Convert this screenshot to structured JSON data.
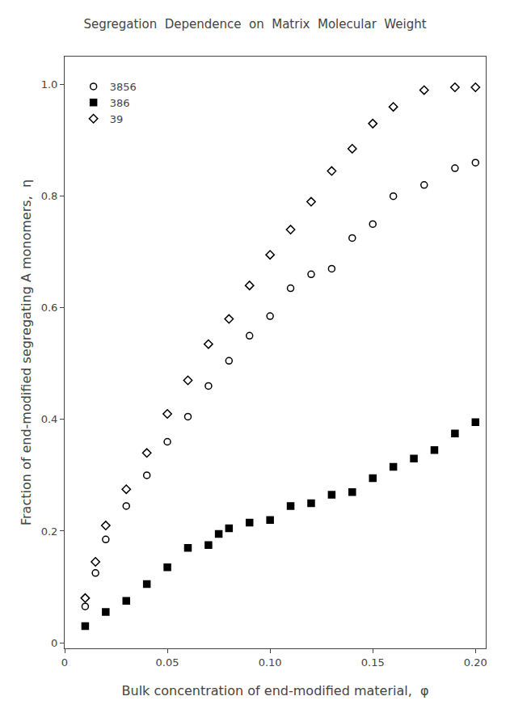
{
  "chart_data": {
    "type": "scatter",
    "title": "Segregation  Dependence  on  Matrix  Molecular  Weight",
    "xlabel": "Bulk concentration of end-modified material,  φ",
    "ylabel": "Fraction of end-modified segregating A monomers,  η",
    "xlim": [
      0,
      0.205
    ],
    "ylim": [
      -0.01,
      1.05
    ],
    "xticks": [
      0,
      0.05,
      {
        "value": 0.1,
        "label": "0.10"
      },
      0.15,
      {
        "value": 0.2,
        "label": "0.20"
      }
    ],
    "yticks": [
      0,
      0.2,
      0.4,
      0.6,
      0.8,
      {
        "value": 1,
        "label": "1.0"
      }
    ],
    "grid": false,
    "legend": "upper left",
    "series": [
      {
        "name": "3856",
        "color": "#000000",
        "marker": "circle-open",
        "x": [
          0.01,
          0.015,
          0.02,
          0.03,
          0.04,
          0.05,
          0.06,
          0.07,
          0.08,
          0.09,
          0.1,
          0.11,
          0.12,
          0.13,
          0.14,
          0.15,
          0.16,
          0.175,
          0.19,
          0.2
        ],
        "values": [
          0.065,
          0.125,
          0.185,
          0.245,
          0.3,
          0.36,
          0.405,
          0.46,
          0.505,
          0.55,
          0.585,
          0.635,
          0.66,
          0.67,
          0.725,
          0.75,
          0.8,
          0.82,
          0.85,
          0.86
        ]
      },
      {
        "name": "386",
        "color": "#000000",
        "marker": "square",
        "x": [
          0.01,
          0.02,
          0.03,
          0.04,
          0.05,
          0.06,
          0.07,
          0.075,
          0.08,
          0.09,
          0.1,
          0.11,
          0.12,
          0.13,
          0.14,
          0.15,
          0.16,
          0.17,
          0.18,
          0.19,
          0.2
        ],
        "values": [
          0.03,
          0.055,
          0.075,
          0.105,
          0.135,
          0.17,
          0.175,
          0.195,
          0.205,
          0.215,
          0.22,
          0.245,
          0.25,
          0.265,
          0.27,
          0.295,
          0.315,
          0.33,
          0.345,
          0.375,
          0.395
        ]
      },
      {
        "name": "39",
        "color": "#000000",
        "marker": "diamond-open",
        "x": [
          0.01,
          0.015,
          0.02,
          0.03,
          0.04,
          0.05,
          0.06,
          0.07,
          0.08,
          0.09,
          0.1,
          0.11,
          0.12,
          0.13,
          0.14,
          0.15,
          0.16,
          0.175,
          0.19,
          0.2
        ],
        "values": [
          0.08,
          0.145,
          0.21,
          0.275,
          0.34,
          0.41,
          0.47,
          0.535,
          0.58,
          0.64,
          0.695,
          0.74,
          0.79,
          0.845,
          0.885,
          0.93,
          0.96,
          0.99,
          0.995,
          0.995
        ]
      }
    ]
  }
}
